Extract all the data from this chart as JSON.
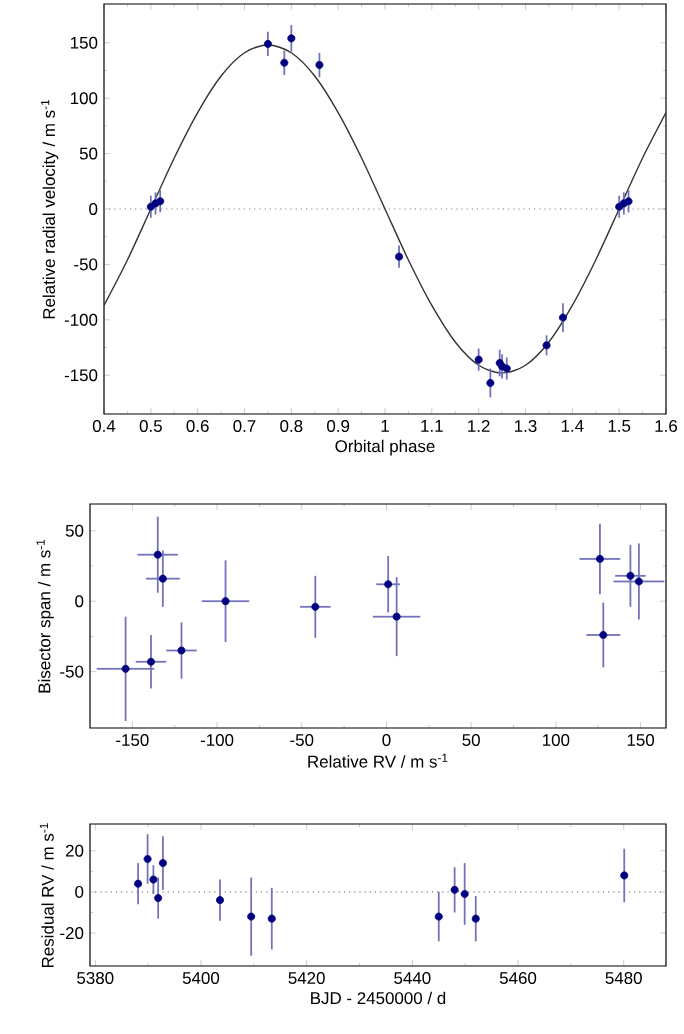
{
  "chart_data": [
    {
      "type": "scatter",
      "xlabel": "Orbital phase",
      "ylabel": "Relative radial velocity / m s$^{-1}$",
      "xlim": [
        0.4,
        1.6
      ],
      "ylim": [
        -185,
        185
      ],
      "xticks": [
        0.4,
        0.5,
        0.6,
        0.7,
        0.8,
        0.9,
        1,
        1.1,
        1.2,
        1.3,
        1.4,
        1.5,
        1.6
      ],
      "yticks": [
        -150,
        -100,
        -50,
        0,
        50,
        100,
        150
      ],
      "ref_lines": [
        {
          "axis": "y",
          "value": 0,
          "color": "#808080",
          "line_style": "dotted"
        }
      ],
      "series": [
        {
          "type": "line",
          "color": "#333333",
          "x": [
            0.4,
            0.45,
            0.5,
            0.55,
            0.6,
            0.65,
            0.7,
            0.75,
            0.8,
            0.85,
            0.9,
            0.95,
            1.0,
            1.05,
            1.1,
            1.15,
            1.2,
            1.25,
            1.3,
            1.35,
            1.4,
            1.45,
            1.5,
            1.55,
            1.6
          ],
          "values": [
            -87,
            -46,
            0,
            46,
            87,
            120,
            141,
            148,
            141,
            120,
            87,
            46,
            0,
            -46,
            -87,
            -120,
            -141,
            -148,
            -141,
            -120,
            -87,
            -46,
            0,
            46,
            87
          ]
        },
        {
          "type": "scatter",
          "color": "#000080",
          "marker": "circle",
          "x": [
            0.5,
            0.51,
            0.52,
            0.75,
            0.785,
            0.8,
            0.86,
            1.03,
            1.2,
            1.225,
            1.245,
            1.25,
            1.26,
            1.345,
            1.38,
            1.5,
            1.51,
            1.52
          ],
          "values": [
            2,
            5,
            7,
            149,
            132,
            154,
            130,
            -43,
            -136,
            -157,
            -139,
            -142,
            -144,
            -123,
            -98,
            2,
            5,
            7
          ],
          "errors": [
            10,
            10,
            10,
            11,
            11,
            12,
            11,
            10,
            10,
            13,
            12,
            11,
            10,
            9,
            13,
            10,
            10,
            10
          ]
        }
      ]
    },
    {
      "type": "scatter",
      "xlabel": "Relative RV / m s$^{-1}$",
      "ylabel": "Bisector span / m s$^{-1}$",
      "xlim": [
        -175,
        165
      ],
      "ylim": [
        -90,
        69
      ],
      "xticks": [
        -150,
        -100,
        -50,
        0,
        50,
        100,
        150
      ],
      "yticks": [
        -50,
        0,
        50
      ],
      "series": [
        {
          "type": "scatter",
          "color": "#000080",
          "marker": "circle",
          "x": [
            -154,
            -139,
            -135,
            -132,
            -121,
            -95,
            -42,
            1,
            6,
            126,
            128,
            144,
            149
          ],
          "values": [
            -48,
            -43,
            33,
            16,
            -35,
            0,
            -4,
            12,
            -11,
            30,
            -24,
            18,
            14
          ],
          "errors": [
            37,
            19,
            27,
            20,
            20,
            29,
            22,
            20,
            28,
            25,
            23,
            22,
            27
          ],
          "xerrors": [
            17,
            9,
            12,
            10,
            9,
            14,
            9,
            7,
            14,
            12,
            10,
            9,
            15
          ]
        }
      ]
    },
    {
      "type": "scatter",
      "xlabel": "BJD - 2450000 / d",
      "ylabel": "Residual RV / m s$^{-1}$",
      "xlim": [
        5379,
        5488
      ],
      "ylim": [
        -36,
        33
      ],
      "xticks": [
        5380,
        5400,
        5420,
        5440,
        5460,
        5480
      ],
      "yticks": [
        -20,
        0,
        20
      ],
      "ref_lines": [
        {
          "axis": "y",
          "value": 0,
          "color": "#808080",
          "line_style": "dotted"
        }
      ],
      "series": [
        {
          "type": "scatter",
          "color": "#000080",
          "marker": "circle",
          "x": [
            5388.1,
            5389.9,
            5391,
            5391.9,
            5392.8,
            5403.6,
            5409.5,
            5413.4,
            5445,
            5448,
            5449.9,
            5452,
            5480.1
          ],
          "values": [
            4,
            16,
            6,
            -3,
            14,
            -4,
            -12,
            -13,
            -12,
            1,
            -1,
            -13,
            8
          ],
          "errors": [
            10,
            12,
            7,
            10,
            13,
            10,
            19,
            15,
            12,
            11,
            15,
            11,
            13
          ]
        }
      ]
    }
  ]
}
